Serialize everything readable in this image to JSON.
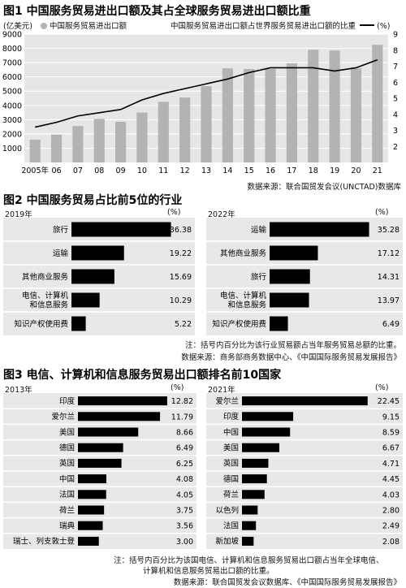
{
  "fig1": {
    "title": "图1 中国服务贸易进出口额及其占全球服务贸易进出口额比重",
    "unit_left": "(亿美元)",
    "unit_right": "(%)",
    "legend_bar": "中国服务贸易进出口额",
    "legend_line": "中国服务贸易进出口额占世界服务贸易进出口额的比重",
    "source": "数据来源：联合国贸发会议(UNCTAD)数据库",
    "colors": {
      "bar": "#b3b3b3",
      "line": "#000000",
      "panel": "#e6e6e6"
    }
  },
  "fig2": {
    "title": "图2 中国服务贸易占比前5位的行业",
    "left_year": "2019年",
    "right_year": "2022年",
    "unit": "(%)",
    "note": "注：括号内百分比为该行业贸易额占当年服务贸易总额的比重。",
    "source": "数据来源：商务部商务数据中心、《中国国际服务贸易发展报告》"
  },
  "fig3": {
    "title": "图3 电信、计算机和信息服务贸易出口额排名前10国家",
    "left_year": "2013年",
    "right_year": "2021年",
    "unit": "(%)",
    "note_line1": "注：括号内百分比为该国电信、计算机和信息服务贸易出口额占当年全球电信、",
    "note_line2": "计算机和信息服务贸易出口额的比重。",
    "source": "数据来源：联合国贸发会议数据库、《中国国际服务贸易发展报告》"
  },
  "chart_data": [
    {
      "type": "bar",
      "title": "图1 中国服务贸易进出口额及其占全球服务贸易进出口额比重",
      "categories": [
        "2005年",
        "06",
        "07",
        "08",
        "09",
        "10",
        "11",
        "12",
        "13",
        "14",
        "15",
        "16",
        "17",
        "18",
        "19",
        "20",
        "21"
      ],
      "ylabel": "(亿美元)",
      "ylim": [
        0,
        9000
      ],
      "yticks": [
        1000,
        2000,
        3000,
        4000,
        5000,
        6000,
        7000,
        8000,
        9000
      ],
      "y2label": "(%)",
      "y2lim": [
        1,
        9
      ],
      "y2ticks": [
        2,
        3,
        4,
        5,
        6,
        7,
        8,
        9
      ],
      "series": [
        {
          "name": "中国服务贸易进出口额",
          "type": "bar",
          "values": [
            1600,
            1950,
            2550,
            3050,
            2850,
            3500,
            4250,
            4550,
            5350,
            6600,
            6550,
            6550,
            6950,
            7900,
            7850,
            6600,
            8250
          ]
        },
        {
          "name": "中国服务贸易进出口额占世界服务贸易进出口额的比重",
          "type": "line",
          "axis": "right",
          "values": [
            3.2,
            3.5,
            3.9,
            4.1,
            4.3,
            4.9,
            5.3,
            5.6,
            5.9,
            6.2,
            6.6,
            6.9,
            6.9,
            6.9,
            6.7,
            6.9,
            7.4
          ]
        }
      ],
      "grid": true,
      "legend": "top"
    },
    {
      "type": "bar",
      "title": "2019年",
      "orientation": "horizontal",
      "categories": [
        "旅行",
        "运输",
        "其他商业服务",
        "电信、计算机\n和信息服务",
        "知识产权使用费"
      ],
      "values": [
        36.38,
        19.22,
        15.69,
        10.29,
        5.22
      ],
      "xlim": [
        0,
        38
      ]
    },
    {
      "type": "bar",
      "title": "2022年",
      "orientation": "horizontal",
      "categories": [
        "运输",
        "其他商业服务",
        "旅行",
        "电信、计算机\n和信息服务",
        "知识产权使用费"
      ],
      "values": [
        35.28,
        17.12,
        14.31,
        13.97,
        6.49
      ],
      "xlim": [
        0,
        38
      ]
    },
    {
      "type": "bar",
      "title": "2013年",
      "orientation": "horizontal",
      "categories": [
        "印度",
        "爱尔兰",
        "美国",
        "德国",
        "英国",
        "中国",
        "法国",
        "荷兰",
        "瑞典",
        "瑞士、列支敦士登"
      ],
      "values": [
        12.82,
        11.79,
        8.66,
        6.49,
        6.25,
        4.08,
        4.05,
        3.75,
        3.56,
        3.0
      ],
      "xlim": [
        0,
        14
      ]
    },
    {
      "type": "bar",
      "title": "2021年",
      "orientation": "horizontal",
      "categories": [
        "爱尔兰",
        "印度",
        "中国",
        "美国",
        "英国",
        "德国",
        "荷兰",
        "以色列",
        "法国",
        "新加坡"
      ],
      "values": [
        22.45,
        9.15,
        8.59,
        6.67,
        4.71,
        4.45,
        4.03,
        2.8,
        2.49,
        2.08
      ],
      "xlim": [
        0,
        23.5
      ]
    }
  ]
}
